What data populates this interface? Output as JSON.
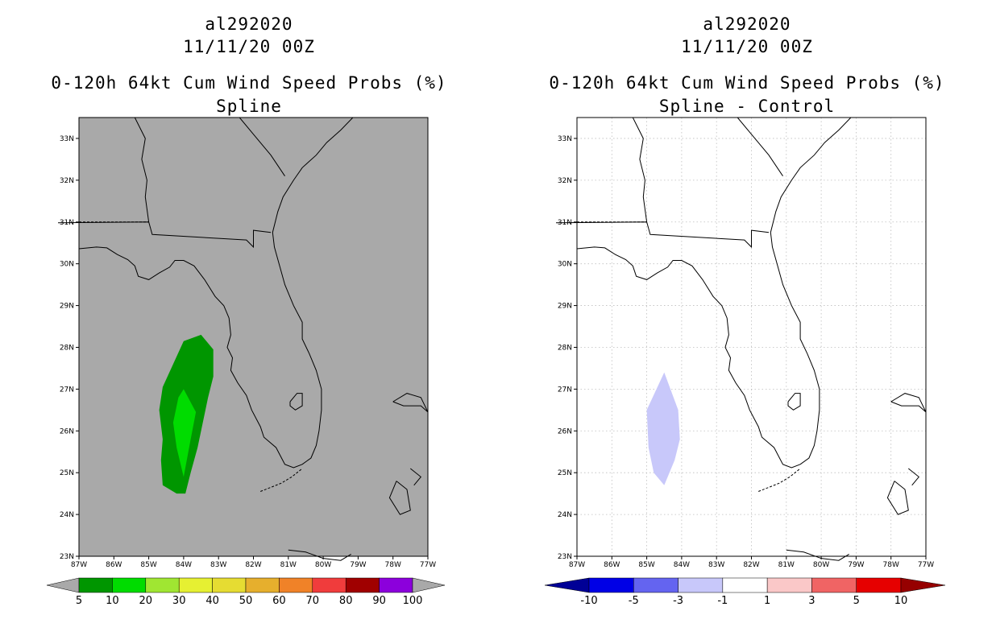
{
  "panels": [
    {
      "id": "left",
      "storm_id": "al292020",
      "date_time": "11/11/20 00Z",
      "product": "0-120h 64kt Cum Wind Speed Probs (%)",
      "variant": "Spline",
      "background_color": "#a9a9a9",
      "colorbar": {
        "labels": [
          "5",
          "10",
          "20",
          "30",
          "40",
          "50",
          "60",
          "70",
          "80",
          "90",
          "100"
        ],
        "colors": [
          "#009600",
          "#00dc00",
          "#a0e632",
          "#e6f032",
          "#e6dc32",
          "#e6af2d",
          "#f08228",
          "#f03c3c",
          "#a00000",
          "#8c00dc"
        ],
        "end_colors": [
          "#a9a9a9",
          "#a9a9a9"
        ]
      }
    },
    {
      "id": "right",
      "storm_id": "al292020",
      "date_time": "11/11/20 00Z",
      "product": "0-120h 64kt Cum Wind Speed Probs (%)",
      "variant": "Spline - Control",
      "background_color": "#ffffff",
      "colorbar": {
        "labels": [
          "-10",
          "-5",
          "-3",
          "-1",
          "1",
          "3",
          "5",
          "10"
        ],
        "colors": [
          "#0000e6",
          "#6464f0",
          "#c8c8fa",
          "#ffffff",
          "#fac8c8",
          "#f06464",
          "#e60000"
        ],
        "end_colors": [
          "#000096",
          "#960000"
        ]
      }
    }
  ],
  "map": {
    "lat_labels": [
      "33N",
      "32N",
      "31N",
      "30N",
      "29N",
      "28N",
      "27N",
      "26N",
      "25N",
      "24N",
      "23N"
    ],
    "lon_labels": [
      "87W",
      "86W",
      "85W",
      "84W",
      "83W",
      "82W",
      "81W",
      "80W",
      "79W",
      "78W",
      "77W"
    ]
  },
  "contours": {
    "left_outer_color": "#009600",
    "left_inner_color": "#00dc00",
    "right_diff_color": "#c8c8fa"
  }
}
